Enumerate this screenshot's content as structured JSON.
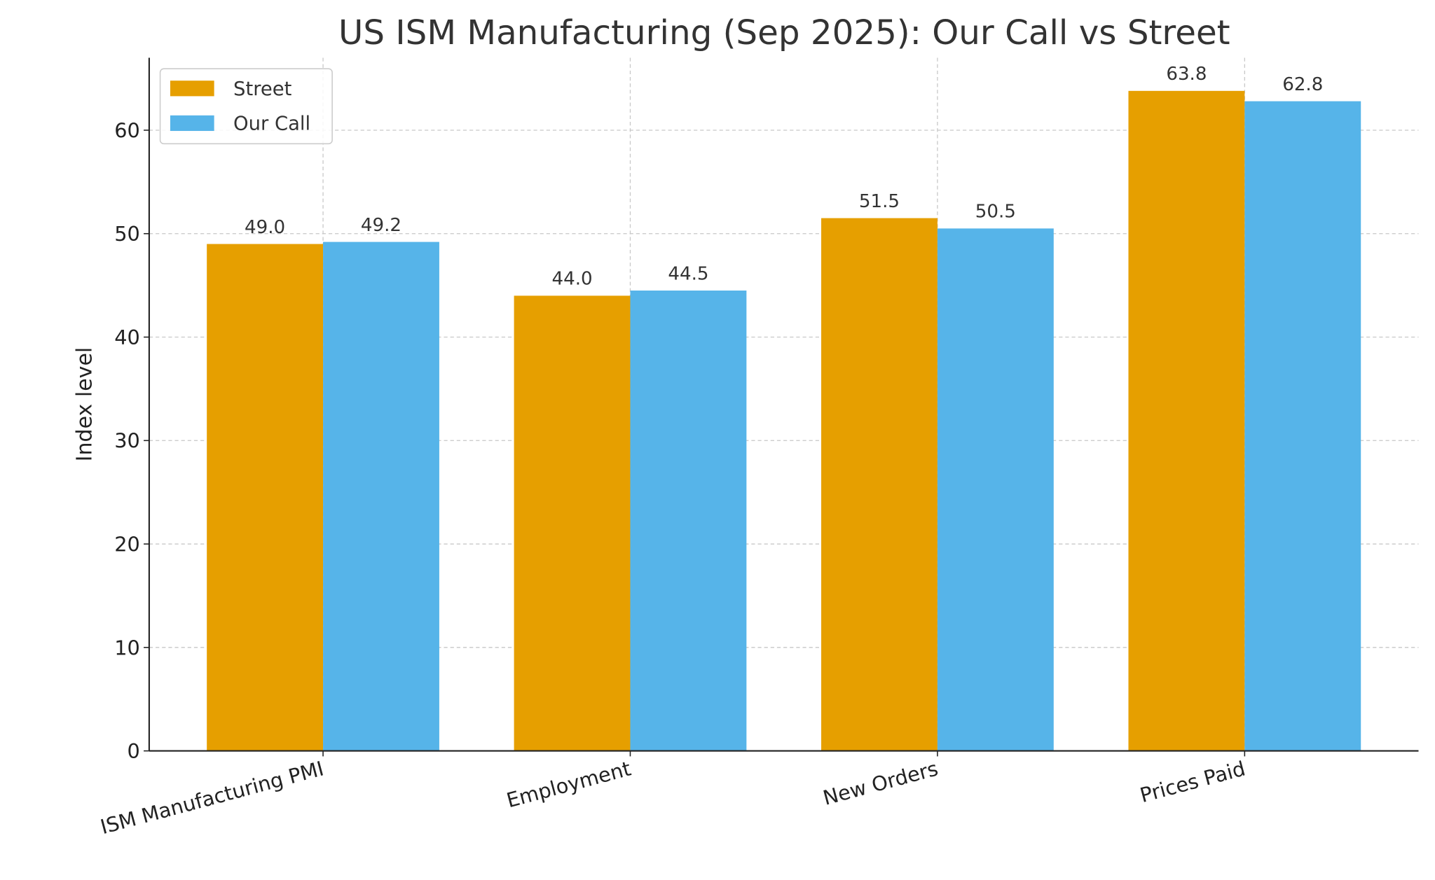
{
  "chart_data": {
    "type": "bar",
    "title": "US ISM Manufacturing (Sep 2025): Our Call vs Street",
    "xlabel": "",
    "ylabel": "Index level",
    "categories": [
      "ISM Manufacturing PMI",
      "Employment",
      "New Orders",
      "Prices Paid"
    ],
    "series": [
      {
        "name": "Street",
        "color": "#E69F00",
        "values": [
          49.0,
          44.0,
          51.5,
          63.8
        ],
        "labels": [
          "49.0",
          "44.0",
          "51.5",
          "63.8"
        ]
      },
      {
        "name": "Our Call",
        "color": "#56B4E9",
        "values": [
          49.2,
          44.5,
          50.5,
          62.8
        ],
        "labels": [
          "49.2",
          "44.5",
          "50.5",
          "62.8"
        ]
      }
    ],
    "ylim": [
      0,
      67
    ],
    "yticks": [
      "0",
      "10",
      "20",
      "30",
      "40",
      "50",
      "60"
    ],
    "grid": true,
    "legend_position": "top-left"
  }
}
